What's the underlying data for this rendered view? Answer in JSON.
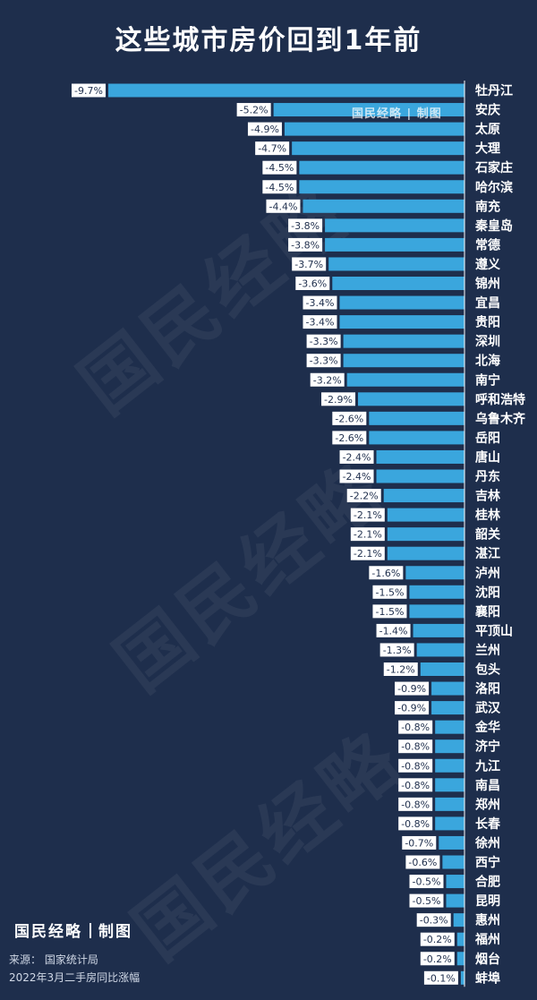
{
  "title": "这些城市房价回到1年前",
  "watermark": "国民经略",
  "brand": {
    "name": "国民经略",
    "suffix": "制图"
  },
  "source_line": "来源：  国家统计局",
  "description_line": "2022年3月二手房同比涨幅",
  "colors": {
    "background": "#1e2e4c",
    "bar": "#3aa6dd",
    "label_bg": "#ffffff",
    "label_text": "#1e2e4c"
  },
  "chart_data": {
    "type": "bar",
    "orientation": "horizontal",
    "title": "这些城市房价回到1年前",
    "categories": [
      "牡丹江",
      "安庆",
      "太原",
      "大理",
      "石家庄",
      "哈尔滨",
      "南充",
      "秦皇岛",
      "常德",
      "遵义",
      "锦州",
      "宜昌",
      "贵阳",
      "深圳",
      "北海",
      "南宁",
      "呼和浩特",
      "乌鲁木齐",
      "岳阳",
      "唐山",
      "丹东",
      "吉林",
      "桂林",
      "韶关",
      "湛江",
      "泸州",
      "沈阳",
      "襄阳",
      "平顶山",
      "兰州",
      "包头",
      "洛阳",
      "武汉",
      "金华",
      "济宁",
      "九江",
      "南昌",
      "郑州",
      "长春",
      "徐州",
      "西宁",
      "合肥",
      "昆明",
      "惠州",
      "福州",
      "烟台",
      "蚌埠"
    ],
    "values": [
      -9.7,
      -5.2,
      -4.9,
      -4.7,
      -4.5,
      -4.5,
      -4.4,
      -3.8,
      -3.8,
      -3.7,
      -3.6,
      -3.4,
      -3.4,
      -3.3,
      -3.3,
      -3.2,
      -2.9,
      -2.6,
      -2.6,
      -2.4,
      -2.4,
      -2.2,
      -2.1,
      -2.1,
      -2.1,
      -1.6,
      -1.5,
      -1.5,
      -1.4,
      -1.3,
      -1.2,
      -0.9,
      -0.9,
      -0.8,
      -0.8,
      -0.8,
      -0.8,
      -0.8,
      -0.8,
      -0.7,
      -0.6,
      -0.5,
      -0.5,
      -0.3,
      -0.2,
      -0.2,
      -0.1
    ],
    "value_labels": [
      "-9.7%",
      "-5.2%",
      "-4.9%",
      "-4.7%",
      "-4.5%",
      "-4.5%",
      "-4.4%",
      "-3.8%",
      "-3.8%",
      "-3.7%",
      "-3.6%",
      "-3.4%",
      "-3.4%",
      "-3.3%",
      "-3.3%",
      "-3.2%",
      "-2.9%",
      "-2.6%",
      "-2.6%",
      "-2.4%",
      "-2.4%",
      "-2.2%",
      "-2.1%",
      "-2.1%",
      "-2.1%",
      "-1.6%",
      "-1.5%",
      "-1.5%",
      "-1.4%",
      "-1.3%",
      "-1.2%",
      "-0.9%",
      "-0.9%",
      "-0.8%",
      "-0.8%",
      "-0.8%",
      "-0.8%",
      "-0.8%",
      "-0.8%",
      "-0.7%",
      "-0.6%",
      "-0.5%",
      "-0.5%",
      "-0.3%",
      "-0.2%",
      "-0.2%",
      "-0.1%"
    ],
    "xlim": [
      -9.7,
      0
    ],
    "grid": false,
    "legend": "none"
  }
}
